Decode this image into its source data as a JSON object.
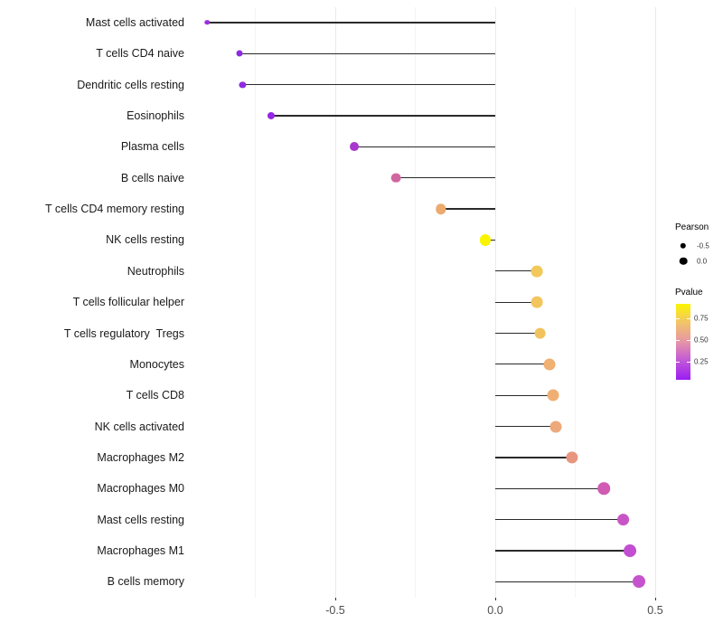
{
  "chart_data": {
    "type": "scatter",
    "variant": "lollipop",
    "orientation": "horizontal",
    "xlabel": "",
    "ylabel": "",
    "x_axis": {
      "ticks": [
        -0.5,
        0.0,
        0.5
      ],
      "tick_labels": [
        "-0.5",
        "0.0",
        "0.5"
      ],
      "range": [
        -0.955,
        0.52
      ],
      "gridlines_major": [
        -0.5,
        0.0,
        0.5
      ],
      "gridlines_minor": [
        -0.75,
        -0.25,
        0.25
      ]
    },
    "baseline": 0.0,
    "points": [
      {
        "category": "Mast cells activated",
        "pearson": -0.9,
        "color": "#9b30db"
      },
      {
        "category": "T cells CD4 naive",
        "pearson": -0.8,
        "color": "#8b2be2"
      },
      {
        "category": "Dendritic cells resting",
        "pearson": -0.79,
        "color": "#8e2be0"
      },
      {
        "category": "Eosinophils",
        "pearson": -0.7,
        "color": "#9725e5"
      },
      {
        "category": "Plasma cells",
        "pearson": -0.44,
        "color": "#a838cd"
      },
      {
        "category": "B cells naive",
        "pearson": -0.31,
        "color": "#d0679e"
      },
      {
        "category": "T cells CD4 memory resting",
        "pearson": -0.17,
        "color": "#edaa6e"
      },
      {
        "category": "NK cells resting",
        "pearson": -0.03,
        "color": "#f9f500"
      },
      {
        "category": "Neutrophils",
        "pearson": 0.13,
        "color": "#f3c85b"
      },
      {
        "category": "T cells follicular helper",
        "pearson": 0.13,
        "color": "#f3c55e"
      },
      {
        "category": "T cells regulatory  Tregs",
        "pearson": 0.14,
        "color": "#f2c35d"
      },
      {
        "category": "Monocytes",
        "pearson": 0.17,
        "color": "#f0b173"
      },
      {
        "category": "T cells CD8",
        "pearson": 0.18,
        "color": "#f0af72"
      },
      {
        "category": "NK cells activated",
        "pearson": 0.19,
        "color": "#eda87b"
      },
      {
        "category": "Macrophages M2",
        "pearson": 0.24,
        "color": "#e8957f"
      },
      {
        "category": "Macrophages M0",
        "pearson": 0.34,
        "color": "#d15ab2"
      },
      {
        "category": "Mast cells resting",
        "pearson": 0.4,
        "color": "#c855c6"
      },
      {
        "category": "Macrophages M1",
        "pearson": 0.42,
        "color": "#c24fd1"
      },
      {
        "category": "B cells memory",
        "pearson": 0.45,
        "color": "#c653ce"
      }
    ],
    "legend": {
      "position": "right",
      "size_legend": {
        "title": "Pearson",
        "items": [
          {
            "label": "-0.5"
          },
          {
            "label": "0.0"
          }
        ]
      },
      "color_legend": {
        "title": "Pvalue",
        "tick_labels": [
          "0.75",
          "0.50",
          "0.25"
        ],
        "tick_values": [
          0.75,
          0.5,
          0.25
        ],
        "bar_value_range": [
          0.04,
          0.92
        ],
        "gradient_colors_top_to_bottom": [
          "#fbf500",
          "#f2c36b",
          "#e695a6",
          "#c157d8",
          "#9c1df2"
        ]
      }
    },
    "stem_color": "#2a2a2a",
    "axis_text_color": "#4d4d4d"
  }
}
